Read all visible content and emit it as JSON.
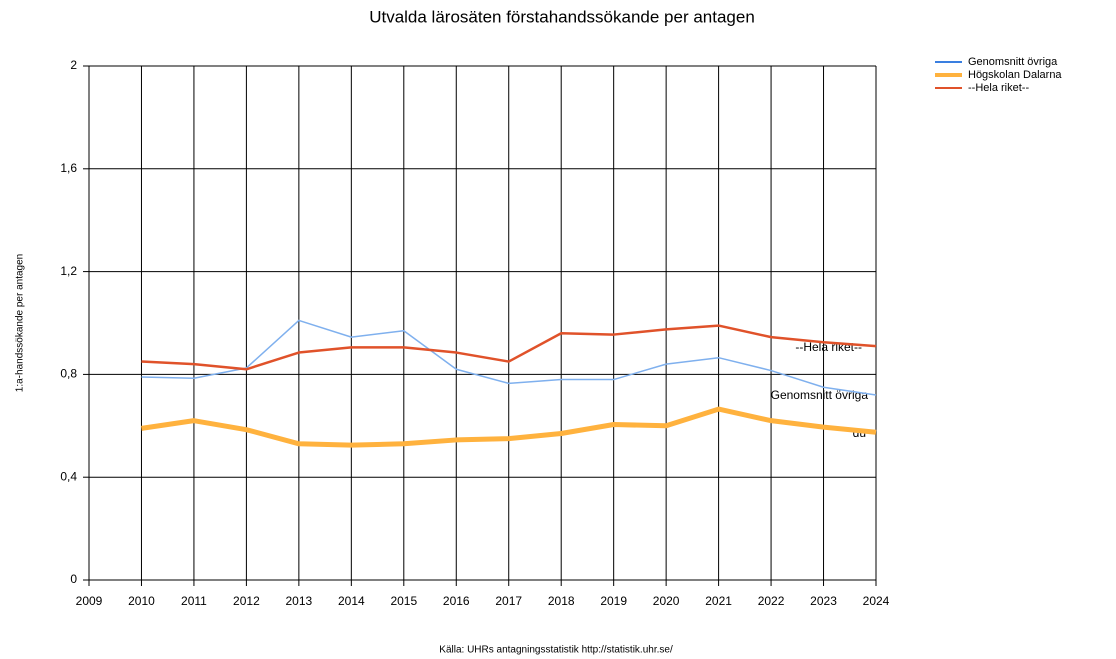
{
  "chart_data": {
    "type": "line",
    "title": "Utvalda lärosäten förstahandssökande per antagen",
    "y_label": "1:a-handssökande per antagen",
    "source": "Källa: UHRs antagningsstatistik http://statistik.uhr.se/",
    "x": [
      2010,
      2011,
      2012,
      2013,
      2014,
      2015,
      2016,
      2017,
      2018,
      2019,
      2020,
      2021,
      2022,
      2023,
      2024
    ],
    "series": [
      {
        "name": "Genomsnitt övriga",
        "color": "#7fb0ee",
        "legend_color": "#3a7fe0",
        "width": 1.5,
        "values": [
          0.79,
          0.785,
          0.825,
          1.01,
          0.945,
          0.97,
          0.82,
          0.765,
          0.78,
          0.78,
          0.84,
          0.865,
          0.815,
          0.75,
          0.72
        ]
      },
      {
        "name": "Högskolan Dalarna",
        "color": "#ffb23e",
        "legend_color": "#ffb23e",
        "width": 5,
        "values": [
          0.59,
          0.62,
          0.585,
          0.53,
          0.525,
          0.53,
          0.545,
          0.55,
          0.57,
          0.605,
          0.6,
          0.665,
          0.62,
          0.595,
          0.575
        ]
      },
      {
        "name": "--Hela riket--",
        "color": "#e0522a",
        "legend_color": "#e0522a",
        "width": 2.5,
        "values": [
          0.85,
          0.84,
          0.82,
          0.885,
          0.905,
          0.905,
          0.885,
          0.85,
          0.96,
          0.955,
          0.975,
          0.99,
          0.945,
          0.925,
          0.91
        ]
      }
    ],
    "annotations": [
      "--Hela riket--",
      "Genomsnitt övriga",
      "du"
    ],
    "xlim": [
      2009,
      2024
    ],
    "xticks": [
      2009,
      2010,
      2011,
      2012,
      2013,
      2014,
      2015,
      2016,
      2017,
      2018,
      2019,
      2020,
      2021,
      2022,
      2023,
      2024
    ],
    "ylim": [
      0,
      2
    ],
    "yticks": [
      0,
      {
        "value": 0.4,
        "label": "0,4"
      },
      {
        "value": 0.8,
        "label": "0,8"
      },
      {
        "value": 1.2,
        "label": "1,2"
      },
      {
        "value": 1.6,
        "label": "1,6"
      },
      2
    ],
    "grid": true
  }
}
